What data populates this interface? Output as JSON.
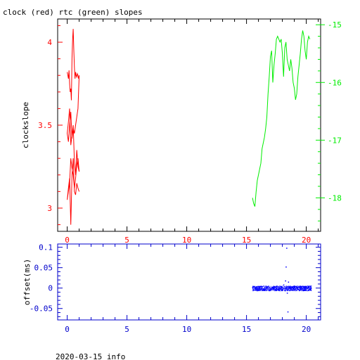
{
  "title": "clock (red) rtc (green) slopes",
  "footer": "2020-03-15 info",
  "colors": {
    "clock": "#ff0000",
    "rtc": "#00ee00",
    "offset": "#0000ff",
    "frame": "#000000",
    "offset_axis": "#0000cc"
  },
  "chart_data": [
    {
      "type": "line",
      "title": "clock (red) rtc (green) slopes",
      "xlabel": "",
      "ylabel": "clockslope",
      "xlim": [
        -0.8,
        21.2
      ],
      "ylim": [
        2.86,
        4.14
      ],
      "y2lim": [
        -18.58,
        -14.9
      ],
      "x_ticks": [
        0,
        5,
        10,
        15,
        20
      ],
      "y_ticks": [
        3,
        3.5,
        4
      ],
      "y2_ticks": [
        -18,
        -17,
        -16,
        -15
      ],
      "grid": false,
      "series": [
        {
          "name": "clock",
          "axis": "left",
          "x": [
            0.0,
            0.05,
            0.1,
            0.15,
            0.2,
            0.25,
            0.3,
            0.35,
            0.4,
            0.45,
            0.5,
            0.55,
            0.6,
            0.65,
            0.7,
            0.75,
            0.8,
            0.85,
            0.9,
            0.95,
            1.0,
            0.9,
            0.8,
            0.7,
            0.6,
            0.5,
            0.4,
            0.3,
            0.2,
            0.1,
            0.0,
            0.1,
            0.2,
            0.3,
            0.4,
            0.5,
            0.6,
            0.7,
            0.8,
            0.9,
            1.0,
            0.9,
            0.8,
            0.7,
            0.6,
            0.5,
            0.4,
            0.3,
            0.2,
            0.1,
            0.0,
            0.1,
            0.2,
            0.3,
            0.4,
            0.5,
            0.6,
            0.7,
            0.8,
            0.9,
            1.0
          ],
          "values": [
            3.82,
            3.8,
            3.78,
            3.83,
            3.75,
            3.7,
            3.72,
            3.65,
            3.9,
            4.02,
            4.08,
            3.95,
            3.85,
            3.78,
            3.82,
            3.8,
            3.79,
            3.81,
            3.8,
            3.78,
            3.8,
            3.6,
            3.55,
            3.5,
            3.45,
            3.48,
            3.42,
            3.58,
            3.5,
            3.4,
            3.45,
            3.52,
            3.6,
            3.38,
            3.44,
            3.5,
            3.28,
            3.2,
            3.35,
            3.25,
            3.22,
            3.3,
            3.26,
            3.18,
            3.12,
            3.2,
            3.24,
            3.3,
            3.15,
            3.1,
            3.05,
            3.12,
            3.18,
            2.9,
            3.2,
            3.3,
            3.1,
            3.08,
            3.15,
            3.12,
            3.1
          ]
        },
        {
          "name": "rtc",
          "axis": "right",
          "x": [
            15.5,
            15.6,
            15.7,
            15.8,
            15.9,
            16.0,
            16.1,
            16.2,
            16.3,
            16.4,
            16.5,
            16.6,
            16.7,
            16.8,
            16.9,
            17.0,
            17.1,
            17.2,
            17.3,
            17.4,
            17.5,
            17.6,
            17.7,
            17.8,
            17.9,
            18.0,
            18.1,
            18.2,
            18.3,
            18.4,
            18.5,
            18.6,
            18.7,
            18.8,
            18.9,
            19.0,
            19.1,
            19.2,
            19.3,
            19.4,
            19.5,
            19.6,
            19.7,
            19.8,
            19.9,
            20.0,
            20.1,
            20.2,
            20.3
          ],
          "values": [
            -18.0,
            -18.1,
            -18.15,
            -17.9,
            -17.7,
            -17.6,
            -17.5,
            -17.4,
            -17.15,
            -17.05,
            -16.95,
            -16.8,
            -16.6,
            -16.2,
            -15.9,
            -15.55,
            -15.45,
            -16.0,
            -15.7,
            -15.5,
            -15.25,
            -15.2,
            -15.25,
            -15.3,
            -15.25,
            -15.5,
            -15.9,
            -15.4,
            -15.3,
            -15.6,
            -15.7,
            -15.8,
            -15.6,
            -15.75,
            -16.0,
            -16.1,
            -16.3,
            -16.2,
            -15.9,
            -15.7,
            -15.5,
            -15.25,
            -15.1,
            -15.2,
            -15.45,
            -15.6,
            -15.3,
            -15.2,
            -15.25
          ]
        }
      ]
    },
    {
      "type": "scatter",
      "xlabel": "",
      "ylabel": "offset(ms)",
      "xlim": [
        -0.8,
        21.2
      ],
      "ylim": [
        -0.078,
        0.108
      ],
      "x_ticks": [
        0,
        5,
        10,
        15,
        20
      ],
      "y_ticks": [
        -0.05,
        0,
        0.05,
        0.1
      ],
      "grid": false,
      "series": [
        {
          "name": "offset",
          "x": [
            15.5,
            15.8,
            16.1,
            16.4,
            16.7,
            17.0,
            17.3,
            17.6,
            17.9,
            18.1,
            18.2,
            18.25,
            18.3,
            18.35,
            18.4,
            18.45,
            18.5,
            18.7,
            19.0,
            19.3,
            19.6,
            19.9,
            20.2,
            20.4
          ],
          "values": [
            0.002,
            -0.003,
            0.004,
            -0.002,
            0.001,
            -0.004,
            0.003,
            0.0,
            0.002,
            0.008,
            -0.006,
            0.018,
            0.052,
            0.098,
            -0.012,
            -0.058,
            0.015,
            -0.002,
            0.005,
            -0.003,
            0.002,
            -0.004,
            0.001,
            0.0
          ]
        }
      ]
    }
  ]
}
